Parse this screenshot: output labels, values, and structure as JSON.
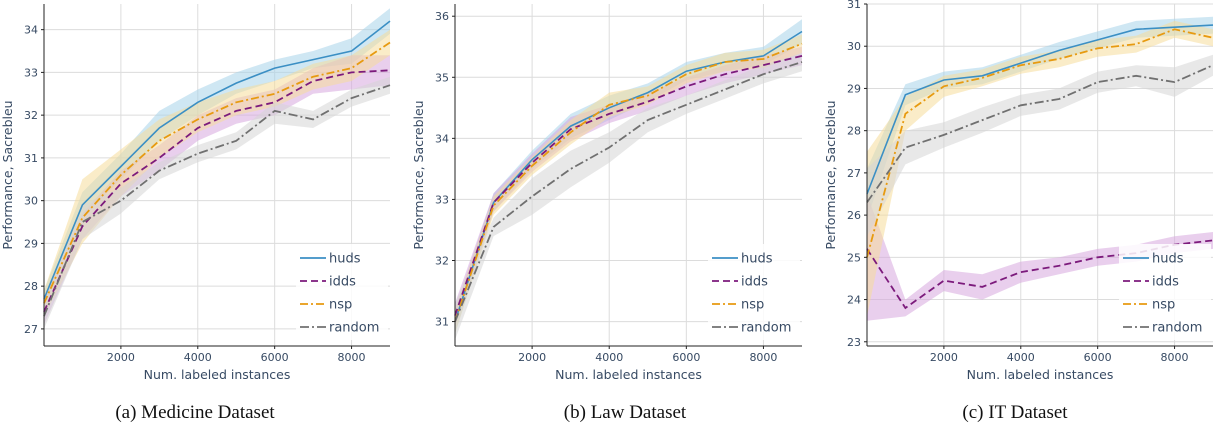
{
  "chart_data": [
    {
      "type": "line",
      "caption": "(a) Medicine Dataset",
      "xlabel": "Num. labeled instances",
      "ylabel": "Performance, Sacrebleu",
      "xlim": [
        0,
        9000
      ],
      "ylim": [
        26.6,
        34.6
      ],
      "xticks": [
        2000,
        4000,
        6000,
        8000
      ],
      "yticks": [
        27,
        28,
        29,
        30,
        31,
        32,
        33,
        34
      ],
      "grid": true,
      "legend_position": "bottom-right",
      "x": [
        0,
        1000,
        2000,
        3000,
        4000,
        5000,
        6000,
        7000,
        8000,
        9000
      ],
      "series": [
        {
          "name": "huds",
          "values": [
            27.7,
            29.9,
            30.8,
            31.7,
            32.3,
            32.75,
            33.1,
            33.3,
            33.5,
            34.2
          ],
          "lower": [
            27.5,
            29.6,
            30.5,
            31.4,
            32.0,
            32.5,
            32.8,
            33.1,
            33.2,
            33.9
          ],
          "upper": [
            27.9,
            30.2,
            31.1,
            32.1,
            32.6,
            33.0,
            33.3,
            33.5,
            33.8,
            34.5
          ]
        },
        {
          "name": "idds",
          "values": [
            27.4,
            29.4,
            30.4,
            31.0,
            31.7,
            32.1,
            32.3,
            32.8,
            33.0,
            33.05
          ],
          "lower": [
            27.1,
            29.1,
            30.1,
            30.7,
            31.4,
            31.8,
            32.0,
            32.5,
            32.6,
            32.7
          ],
          "upper": [
            27.7,
            29.7,
            30.7,
            31.3,
            32.0,
            32.4,
            32.6,
            33.1,
            33.4,
            33.4
          ]
        },
        {
          "name": "nsp",
          "values": [
            27.6,
            29.6,
            30.6,
            31.4,
            31.9,
            32.3,
            32.5,
            32.9,
            33.1,
            33.7
          ],
          "lower": [
            27.3,
            29.0,
            30.1,
            31.0,
            31.6,
            32.0,
            32.2,
            32.6,
            32.8,
            33.4
          ],
          "upper": [
            27.9,
            30.5,
            31.2,
            31.9,
            32.3,
            32.6,
            32.8,
            33.2,
            33.4,
            34.0
          ]
        },
        {
          "name": "random",
          "values": [
            27.3,
            29.5,
            30.0,
            30.7,
            31.1,
            31.4,
            32.1,
            31.9,
            32.4,
            32.7
          ],
          "lower": [
            27.0,
            29.1,
            29.7,
            30.5,
            30.9,
            31.2,
            31.8,
            31.7,
            32.2,
            32.5
          ],
          "upper": [
            27.6,
            29.9,
            30.3,
            30.9,
            31.3,
            31.6,
            32.3,
            32.1,
            32.6,
            32.9
          ]
        }
      ]
    },
    {
      "type": "line",
      "caption": "(b) Law Dataset",
      "xlabel": "Num. labeled instances",
      "ylabel": "Performance, Sacrebleu",
      "xlim": [
        0,
        9000
      ],
      "ylim": [
        30.6,
        36.2
      ],
      "xticks": [
        2000,
        4000,
        6000,
        8000
      ],
      "yticks": [
        31,
        32,
        33,
        34,
        35,
        36
      ],
      "grid": true,
      "legend_position": "bottom-right",
      "x": [
        0,
        1000,
        2000,
        3000,
        4000,
        5000,
        6000,
        7000,
        8000,
        9000
      ],
      "series": [
        {
          "name": "huds",
          "values": [
            31.0,
            32.95,
            33.65,
            34.2,
            34.5,
            34.75,
            35.1,
            35.25,
            35.35,
            35.75
          ],
          "lower": [
            30.8,
            32.8,
            33.5,
            34.0,
            34.3,
            34.6,
            34.95,
            35.1,
            35.2,
            35.55
          ],
          "upper": [
            31.2,
            33.1,
            33.8,
            34.4,
            34.7,
            34.9,
            35.25,
            35.4,
            35.5,
            35.95
          ]
        },
        {
          "name": "idds",
          "values": [
            31.1,
            32.95,
            33.6,
            34.15,
            34.4,
            34.6,
            34.85,
            35.05,
            35.2,
            35.35
          ],
          "lower": [
            30.9,
            32.8,
            33.45,
            33.95,
            34.25,
            34.45,
            34.7,
            34.9,
            35.05,
            35.2
          ],
          "upper": [
            31.3,
            33.1,
            33.75,
            34.35,
            34.55,
            34.75,
            35.0,
            35.2,
            35.35,
            35.5
          ]
        },
        {
          "name": "nsp",
          "values": [
            31.0,
            32.9,
            33.55,
            34.1,
            34.55,
            34.7,
            35.05,
            35.25,
            35.3,
            35.55
          ],
          "lower": [
            30.8,
            32.75,
            33.4,
            33.9,
            34.35,
            34.55,
            34.9,
            35.1,
            35.15,
            35.4
          ],
          "upper": [
            31.2,
            33.05,
            33.7,
            34.3,
            34.75,
            34.85,
            35.2,
            35.4,
            35.45,
            35.7
          ]
        },
        {
          "name": "random",
          "values": [
            31.0,
            32.55,
            33.05,
            33.5,
            33.85,
            34.3,
            34.55,
            34.8,
            35.05,
            35.25
          ],
          "lower": [
            30.7,
            32.4,
            32.75,
            33.2,
            33.6,
            34.1,
            34.4,
            34.65,
            34.9,
            35.1
          ],
          "upper": [
            31.3,
            32.7,
            33.35,
            33.8,
            34.1,
            34.5,
            34.7,
            34.95,
            35.2,
            35.4
          ]
        }
      ]
    },
    {
      "type": "line",
      "caption": "(c) IT Dataset",
      "xlabel": "Num. labeled instances",
      "ylabel": "Performance, Sacrebleu",
      "xlim": [
        0,
        9000
      ],
      "ylim": [
        22.9,
        31.0
      ],
      "xticks": [
        2000,
        4000,
        6000,
        8000
      ],
      "yticks": [
        23,
        24,
        25,
        26,
        27,
        28,
        29,
        30,
        31
      ],
      "grid": true,
      "legend_position": "bottom-right",
      "x": [
        0,
        1000,
        2000,
        3000,
        4000,
        5000,
        6000,
        7000,
        8000,
        9000
      ],
      "series": [
        {
          "name": "huds",
          "values": [
            26.5,
            28.85,
            29.2,
            29.3,
            29.6,
            29.9,
            30.15,
            30.4,
            30.45,
            30.5
          ],
          "lower": [
            25.9,
            28.6,
            29.0,
            29.1,
            29.4,
            29.7,
            29.95,
            30.2,
            30.25,
            30.3
          ],
          "upper": [
            27.1,
            29.1,
            29.4,
            29.5,
            29.8,
            30.1,
            30.35,
            30.6,
            30.65,
            30.7
          ]
        },
        {
          "name": "idds",
          "values": [
            25.2,
            23.8,
            24.45,
            24.3,
            24.65,
            24.8,
            25.0,
            25.1,
            25.3,
            25.4
          ],
          "lower": [
            23.5,
            23.6,
            24.2,
            24.0,
            24.4,
            24.6,
            24.8,
            24.9,
            25.1,
            25.2
          ],
          "upper": [
            26.5,
            24.0,
            24.7,
            24.6,
            24.9,
            25.0,
            25.2,
            25.3,
            25.5,
            25.6
          ]
        },
        {
          "name": "nsp",
          "values": [
            25.0,
            28.4,
            29.05,
            29.25,
            29.55,
            29.7,
            29.95,
            30.05,
            30.4,
            30.2
          ],
          "lower": [
            23.6,
            28.0,
            28.8,
            29.05,
            29.35,
            29.5,
            29.75,
            29.85,
            30.2,
            30.0
          ],
          "upper": [
            27.5,
            28.8,
            29.3,
            29.45,
            29.75,
            29.9,
            30.15,
            30.25,
            30.6,
            30.4
          ]
        },
        {
          "name": "random",
          "values": [
            26.3,
            27.6,
            27.9,
            28.25,
            28.6,
            28.75,
            29.15,
            29.3,
            29.15,
            29.55
          ],
          "lower": [
            25.5,
            27.2,
            27.6,
            27.95,
            28.35,
            28.5,
            28.9,
            29.05,
            28.8,
            29.3
          ],
          "upper": [
            27.1,
            28.0,
            28.2,
            28.55,
            28.85,
            29.0,
            29.4,
            29.55,
            29.5,
            29.8
          ]
        }
      ]
    }
  ],
  "style": {
    "colors": {
      "huds": "#3b8fc4",
      "idds": "#7c1a7c",
      "nsp": "#e79a10",
      "random": "#707070"
    },
    "band_colors": {
      "huds": "#a8d4ea",
      "idds": "#d7a8de",
      "nsp": "#f6dc9a",
      "random": "#d5d5d5"
    },
    "dashes": {
      "huds": "none",
      "idds": "7,4",
      "nsp": "8,3,2,3",
      "random": "9,3,2,3"
    },
    "grid_color": "#dcdcdc",
    "text_color": "#374a63"
  }
}
